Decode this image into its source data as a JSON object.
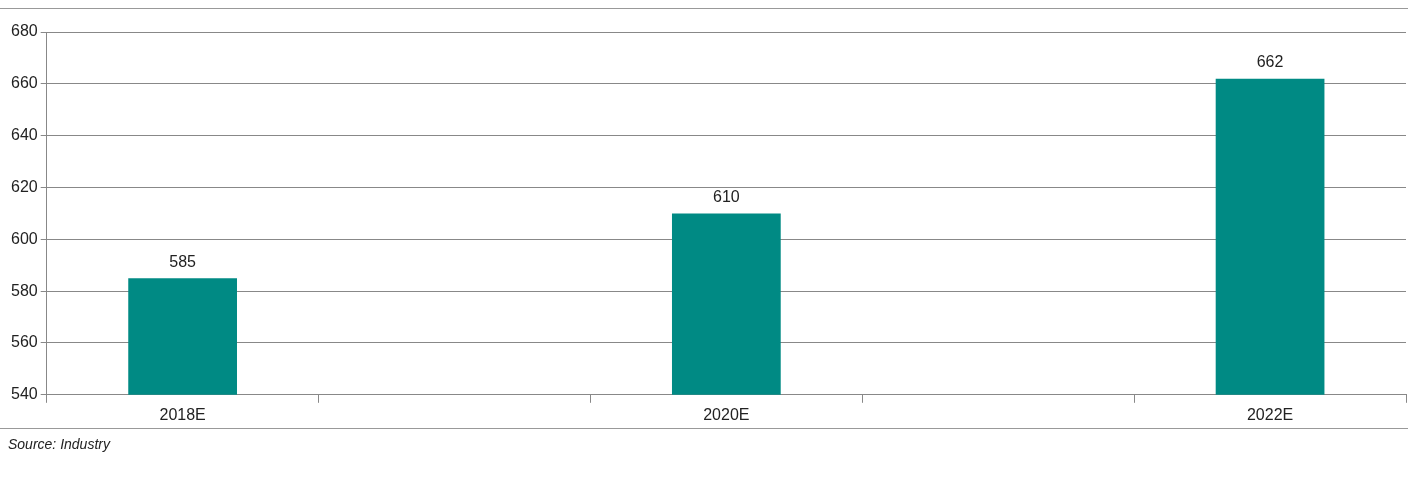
{
  "chart_data": {
    "type": "bar",
    "categories": [
      "2018E",
      null,
      "2020E",
      null,
      "2022E"
    ],
    "values": [
      585,
      null,
      610,
      null,
      662
    ],
    "color": "#008a84",
    "ylim": [
      540,
      680
    ],
    "yticks": [
      540,
      560,
      580,
      600,
      620,
      640,
      660,
      680
    ],
    "grid": "y",
    "legend": false,
    "data_labels": true,
    "annotations": [
      "Source: Industry"
    ]
  }
}
